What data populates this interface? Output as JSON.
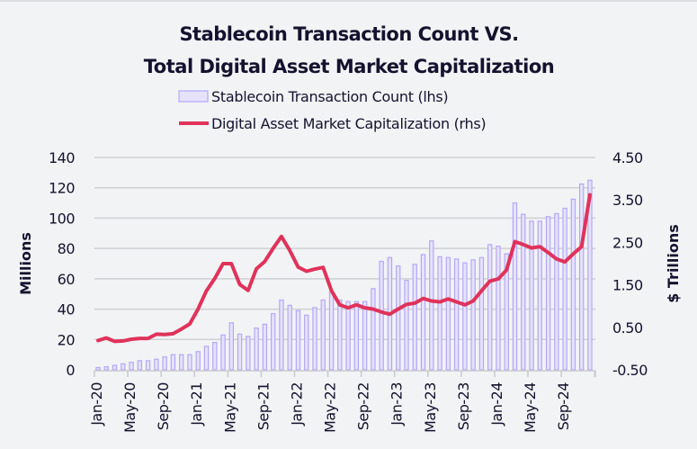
{
  "chart_data": {
    "type": "bar+line",
    "title": [
      "Stablecoin Transaction Count VS.",
      "Total Digital Asset Market Capitalization"
    ],
    "legend": {
      "position": "top",
      "entries": [
        "Stablecoin Transaction Count (lhs)",
        "Digital Asset Market Capitalization (rhs)"
      ]
    },
    "ylabel_left": "Millions",
    "ylabel_right": "$ Trillions",
    "ylim_left": [
      0,
      140
    ],
    "ylim_right": [
      -0.5,
      4.5
    ],
    "yticks_left": [
      "0",
      "20",
      "40",
      "60",
      "80",
      "100",
      "120",
      "140"
    ],
    "yticks_right": [
      "-0.50",
      "0.50",
      "1.50",
      "2.50",
      "3.50",
      "4.50"
    ],
    "xtick_labels": [
      "Jan-20",
      "May-20",
      "Sep-20",
      "Jan-21",
      "May-21",
      "Sep-21",
      "Jan-22",
      "May-22",
      "Sep-22",
      "Jan-23",
      "May-23",
      "Sep-23",
      "Jan-24",
      "May-24",
      "Sep-24"
    ],
    "grid": true,
    "colors": {
      "bar_fill": "#e6e2fb",
      "bar_stroke": "#b5a7f6",
      "line": "#e0325a",
      "text": "#14122e"
    },
    "x": [
      "Jan-20",
      "Feb-20",
      "Mar-20",
      "Apr-20",
      "May-20",
      "Jun-20",
      "Jul-20",
      "Aug-20",
      "Sep-20",
      "Oct-20",
      "Nov-20",
      "Dec-20",
      "Jan-21",
      "Feb-21",
      "Mar-21",
      "Apr-21",
      "May-21",
      "Jun-21",
      "Jul-21",
      "Aug-21",
      "Sep-21",
      "Oct-21",
      "Nov-21",
      "Dec-21",
      "Jan-22",
      "Feb-22",
      "Mar-22",
      "Apr-22",
      "May-22",
      "Jun-22",
      "Jul-22",
      "Aug-22",
      "Sep-22",
      "Oct-22",
      "Nov-22",
      "Dec-22",
      "Jan-23",
      "Feb-23",
      "Mar-23",
      "Apr-23",
      "May-23",
      "Jun-23",
      "Jul-23",
      "Aug-23",
      "Sep-23",
      "Oct-23",
      "Nov-23",
      "Dec-23",
      "Jan-24",
      "Feb-24",
      "Mar-24",
      "Apr-24",
      "May-24",
      "Jun-24",
      "Jul-24",
      "Aug-24",
      "Sep-24",
      "Oct-24",
      "Nov-24",
      "Dec-24"
    ],
    "series": [
      {
        "name": "Stablecoin Transaction Count (lhs)",
        "type": "bar",
        "axis": "left",
        "values": [
          1.5,
          2,
          3,
          4,
          5,
          6,
          6,
          7,
          8.5,
          10,
          10,
          10,
          12,
          15.5,
          18,
          23,
          31,
          23.5,
          22,
          27.5,
          30,
          37,
          46,
          42.5,
          39,
          36,
          41,
          46,
          51.5,
          46,
          45,
          45,
          45,
          53.5,
          71.5,
          74,
          68.5,
          59,
          69.5,
          76,
          85,
          74.5,
          74,
          73,
          70.5,
          72.5,
          74,
          82.5,
          81.5,
          76.5,
          110,
          102.5,
          98,
          98,
          101,
          103,
          106.5,
          112.5,
          122.5,
          125
        ]
      },
      {
        "name": "Digital Asset Market Capitalization (rhs)",
        "type": "line",
        "axis": "right",
        "values": [
          0.19,
          0.25,
          0.17,
          0.18,
          0.22,
          0.24,
          0.24,
          0.34,
          0.33,
          0.35,
          0.46,
          0.58,
          0.93,
          1.36,
          1.65,
          2.0,
          2.0,
          1.51,
          1.37,
          1.88,
          2.05,
          2.36,
          2.64,
          2.31,
          1.92,
          1.82,
          1.87,
          1.91,
          1.36,
          1.03,
          0.96,
          1.03,
          0.96,
          0.93,
          0.86,
          0.81,
          0.93,
          1.04,
          1.07,
          1.18,
          1.12,
          1.1,
          1.17,
          1.1,
          1.03,
          1.12,
          1.36,
          1.59,
          1.64,
          1.85,
          2.52,
          2.45,
          2.37,
          2.4,
          2.26,
          2.11,
          2.04,
          2.23,
          2.4,
          3.62
        ]
      }
    ]
  }
}
